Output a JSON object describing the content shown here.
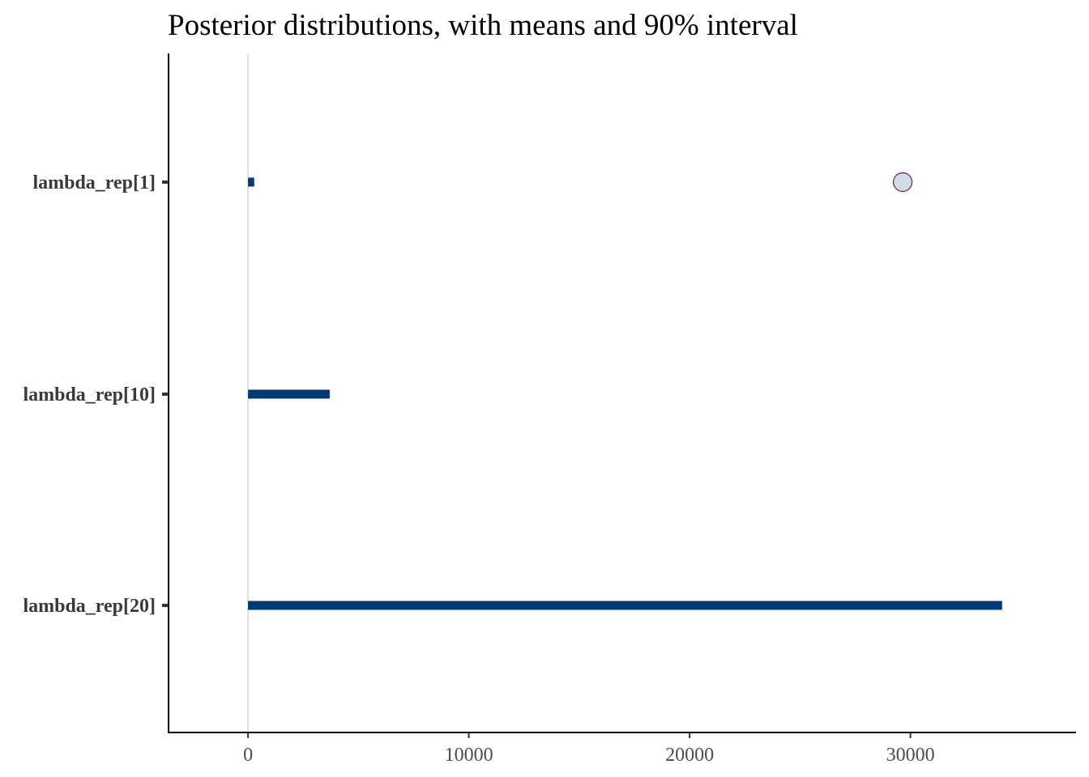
{
  "chart_data": {
    "type": "interval",
    "title": "Posterior distributions, with means and 90% interval",
    "xlabel": "",
    "ylabel": "",
    "xlim": [
      -3600,
      37500
    ],
    "x_ticks": [
      0,
      10000,
      20000,
      30000
    ],
    "x_tick_labels": [
      "0",
      "10000",
      "20000",
      "30000"
    ],
    "reference_line_x": 0,
    "grid": false,
    "legend": "none",
    "colors": {
      "interval": "#003a70",
      "point_fill": "#d1dde6",
      "point_stroke": "#6b1a52",
      "reference_line": "#d9d9d9",
      "axis": "#000000"
    },
    "parameters": [
      {
        "label": "lambda_rep[1]",
        "interval_low": 0,
        "interval_high": 280,
        "mean": 29650,
        "show_mean": true
      },
      {
        "label": "lambda_rep[10]",
        "interval_low": 0,
        "interval_high": 3700,
        "mean": null,
        "show_mean": false
      },
      {
        "label": "lambda_rep[20]",
        "interval_low": 0,
        "interval_high": 34150,
        "mean": null,
        "show_mean": false
      }
    ]
  }
}
